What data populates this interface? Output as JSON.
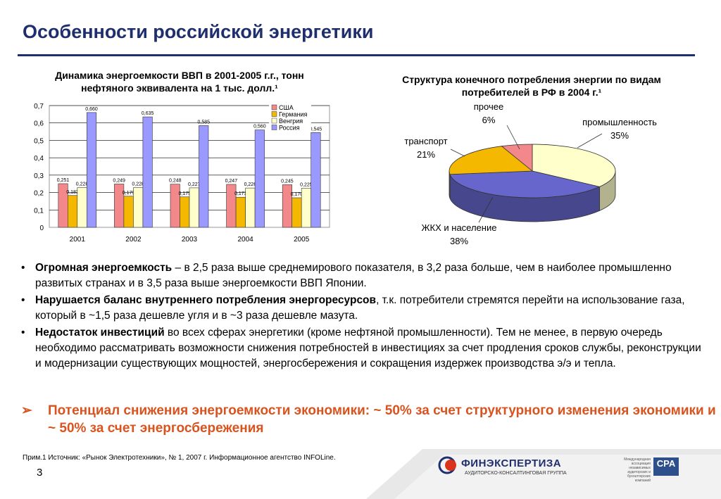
{
  "title": "Особенности российской энергетики",
  "chart1_title": "Динамика энергоемкости ВВП в 2001-2005 г.г., тонн нефтяного эквивалента на 1 тыс. долл.¹",
  "chart2_title": "Структура конечного потребления энергии по видам потребителей в РФ в 2004 г.¹",
  "chart_data": [
    {
      "type": "bar",
      "categories": [
        "2001",
        "2002",
        "2003",
        "2004",
        "2005"
      ],
      "series": [
        {
          "name": "США",
          "color": "#f2888a",
          "values": [
            0.251,
            0.249,
            0.248,
            0.247,
            0.245
          ]
        },
        {
          "name": "Германия",
          "color": "#f5b800",
          "values": [
            0.183,
            0.179,
            0.175,
            0.173,
            0.17
          ]
        },
        {
          "name": "Венгрия",
          "color": "#ffffcc",
          "values": [
            0.228,
            0.228,
            0.227,
            0.226,
            0.225
          ]
        },
        {
          "name": "Россия",
          "color": "#9999ff",
          "values": [
            0.66,
            0.635,
            0.585,
            0.56,
            0.545
          ]
        }
      ],
      "value_labels": [
        [
          "0,251",
          "0,249",
          "0,248",
          "0,247",
          "0,245"
        ],
        [
          "0,183",
          "0,179",
          "0,175",
          "0,173",
          "0,170"
        ],
        [
          "0,228",
          "0,228",
          "0,227",
          "0,226",
          "0,225"
        ],
        [
          "0,660",
          "0,635",
          "0,585",
          "0,560",
          "0,545"
        ]
      ],
      "ylim": [
        0,
        0.7
      ],
      "yticks": [
        "0",
        "0,1",
        "0,2",
        "0,3",
        "0,4",
        "0,5",
        "0,6",
        "0,7"
      ],
      "legend": "top-right"
    },
    {
      "type": "pie",
      "slices": [
        {
          "label": "промышленность",
          "value": 35,
          "text": "35%",
          "color": "#ffffcc"
        },
        {
          "label": "ЖКХ и население",
          "value": 38,
          "text": "38%",
          "color": "#6666cc"
        },
        {
          "label": "транспорт",
          "value": 21,
          "text": "21%",
          "color": "#f5b800"
        },
        {
          "label": "прочее",
          "value": 6,
          "text": "6%",
          "color": "#f2888a"
        }
      ]
    }
  ],
  "bullets": [
    {
      "bold": "Огромная энергоемкость",
      "text": " – в 2,5 раза выше среднемирового показателя, в 3,2 раза больше, чем в наиболее промышленно развитых странах и в 3,5 раза выше энергоемкости ВВП Японии."
    },
    {
      "bold": "Нарушается баланс внутреннего потребления энергоресурсов",
      "text": ", т.к. потребители стремятся перейти на использование газа, который в ~1,5 раза дешевле угля и в ~3 раза дешевле мазута."
    },
    {
      "bold": "Недостаток инвестиций",
      "text": " во всех сферах энергетики (кроме нефтяной промышленности). Тем не менее, в первую очередь необходимо рассматривать возможности снижения потребностей в инвестициях за счет продления сроков службы, реконструкции и модернизации существующих мощностей, энергосбережения и сокращения издержек производства э/э и тепла."
    }
  ],
  "bullet_marker": "•",
  "highlight": {
    "marker": "➢",
    "text": "Потенциал снижения энергоемкости экономики: ~ 50% за счет структурного изменения экономики и ~ 50% за счет энергосбережения"
  },
  "note": "Прим.1 Источник: «Рынок Электротехники», № 1, 2007 г. Информационное агентство INFOLine.",
  "page_number": "3",
  "footer": {
    "logo_name": "ФИНЭКСПЕРТИЗА",
    "logo_sub": "АУДИТОРСКО-КОНСАЛТИНГОВАЯ ГРУППА",
    "cpa_logo": "CPA",
    "cpa_sub": "Международная ассоциация независимых аудиторских и бухгалтерских компаний"
  }
}
